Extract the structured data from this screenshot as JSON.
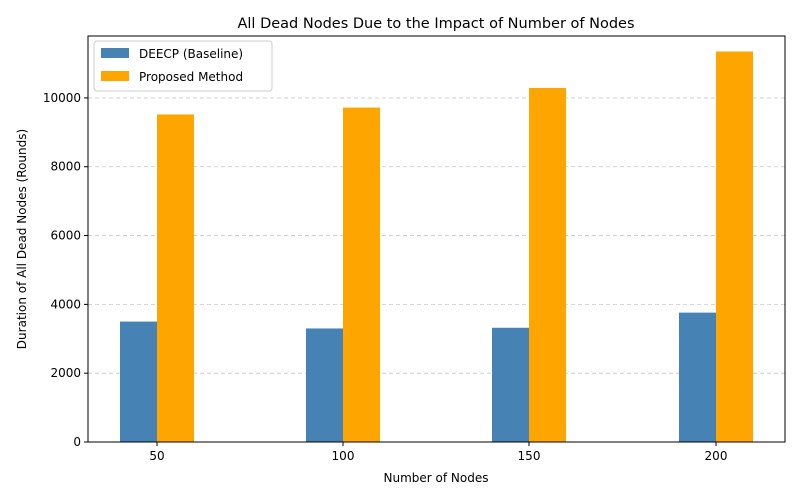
{
  "chart_data": {
    "type": "bar",
    "title": "All Dead Nodes Due to the Impact of Number of Nodes",
    "xlabel": "Number of Nodes",
    "ylabel": "Duration of All Dead Nodes (Rounds)",
    "categories": [
      "50",
      "100",
      "150",
      "200"
    ],
    "series": [
      {
        "name": "DEECP (Baseline)",
        "values": [
          3500,
          3300,
          3320,
          3760
        ],
        "color": "#4682b4"
      },
      {
        "name": "Proposed Method",
        "values": [
          9520,
          9720,
          10290,
          11350
        ],
        "color": "#ffa500"
      }
    ],
    "ylim": [
      0,
      11800
    ],
    "yticks": [
      0,
      2000,
      4000,
      6000,
      8000,
      10000
    ],
    "grid": "y-dashed",
    "legend": "top-left"
  }
}
